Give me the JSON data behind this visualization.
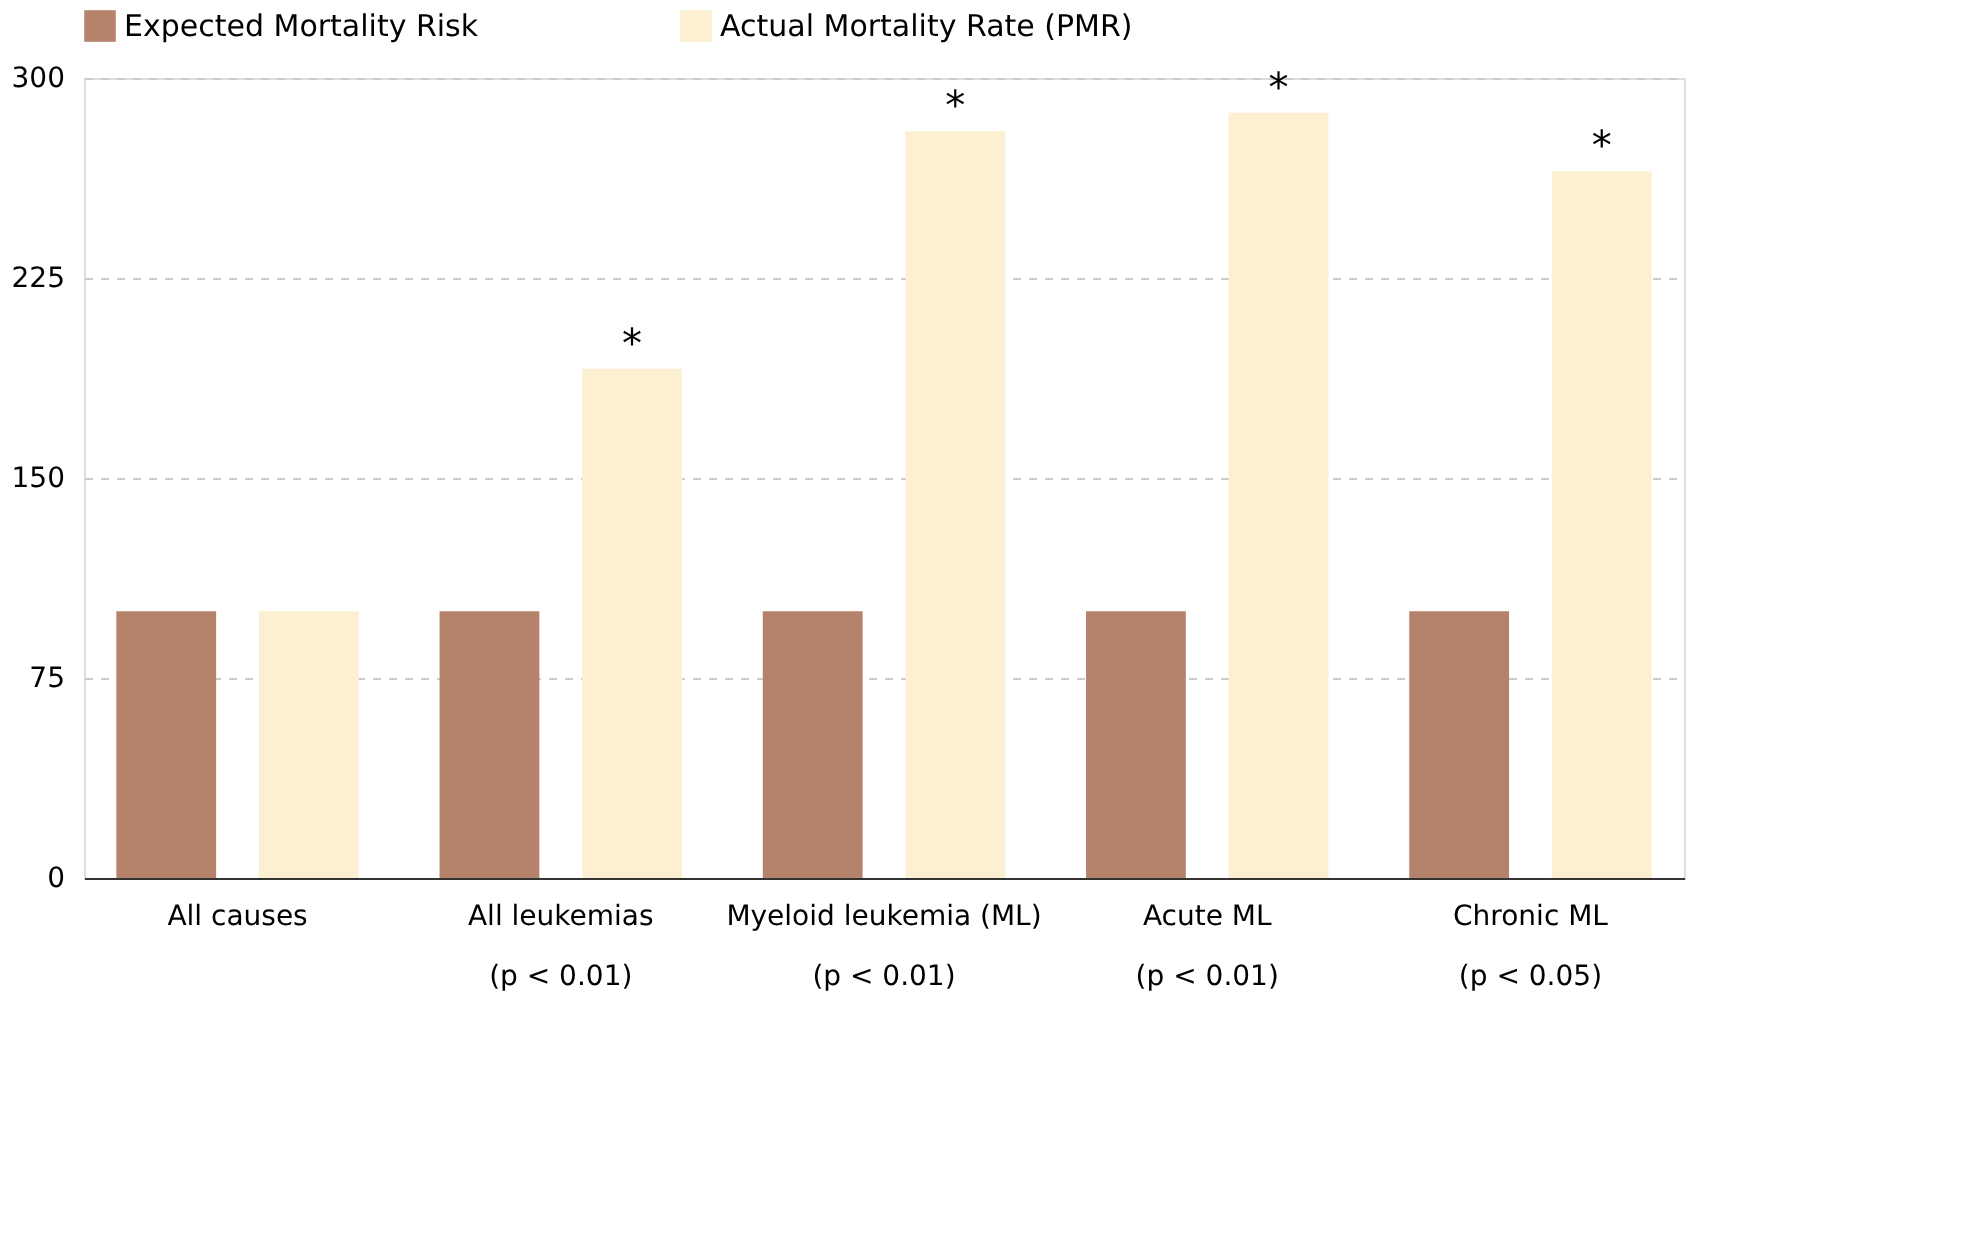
{
  "chart_data": {
    "type": "bar",
    "categories": [
      "All causes",
      "All leukemias\n(p < 0.01)",
      "Myeloid leukemia (ML)\n(p < 0.01)",
      "Acute ML\n(p < 0.01)",
      "Chronic ML\n(p < 0.05)"
    ],
    "series": [
      {
        "name": "Expected Mortality Risk",
        "color": "#b5836b",
        "values": [
          100,
          100,
          100,
          100,
          100
        ]
      },
      {
        "name": "Actual Mortality Rate (PMR)",
        "color": "#fdf0d2",
        "values": [
          100,
          191,
          280,
          287,
          265
        ],
        "value_labels": [
          null,
          "*",
          "*",
          "*",
          "*"
        ]
      }
    ],
    "ylim": [
      0,
      300
    ],
    "yticks": [
      0,
      75,
      150,
      225,
      300
    ],
    "grid": "y",
    "legend": "top"
  }
}
